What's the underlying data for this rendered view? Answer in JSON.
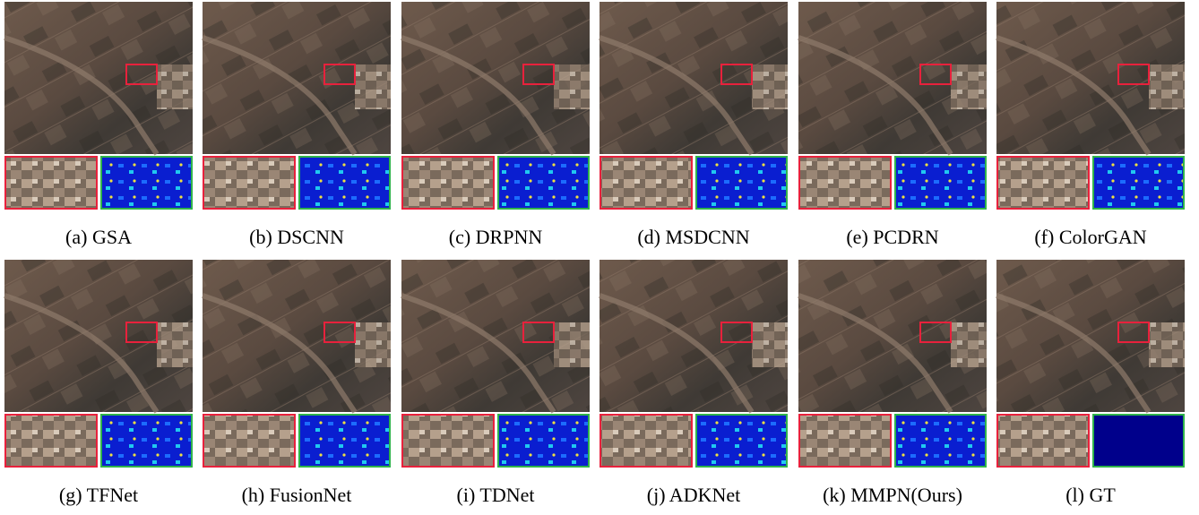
{
  "panels": [
    "(a) GSA",
    "(b) DSCNN",
    "(c) DRPNN",
    "(d) MSDCNN",
    "(e) PCDRN",
    "(f) ColorGAN",
    "(g) TFNet",
    "(h) FusionNet",
    "(i) TDNet",
    "(j) ADKNet",
    "(k) MMPN(Ours)",
    "(l) GT"
  ]
}
